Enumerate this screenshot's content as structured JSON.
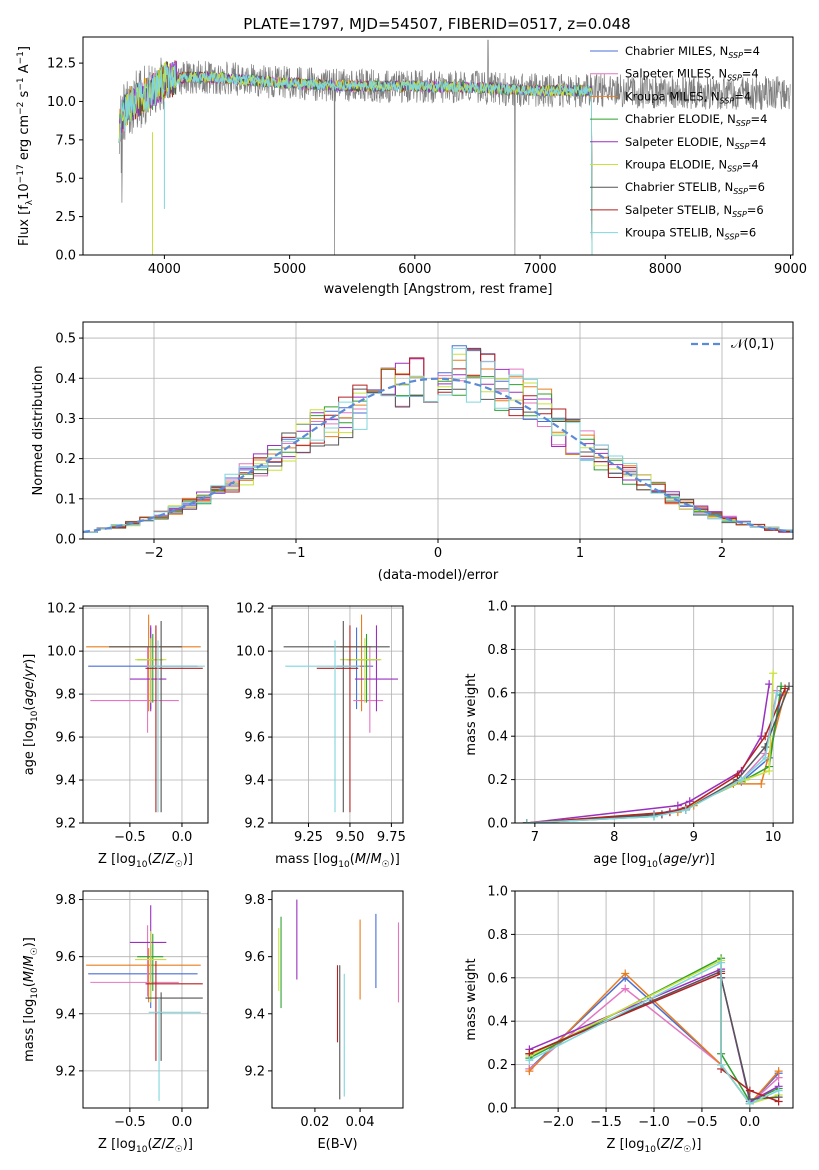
{
  "figure_title": "PLATE=1797, MJD=54507, FIBERID=0517, z=0.048",
  "models": [
    {
      "name": "Chabrier MILES",
      "nssp": "4",
      "color": "#4a6fd6"
    },
    {
      "name": "Salpeter MILES",
      "nssp": "4",
      "color": "#e377c2"
    },
    {
      "name": "Kroupa MILES",
      "nssp": "4",
      "color": "#e87d1e"
    },
    {
      "name": "Chabrier ELODIE",
      "nssp": "4",
      "color": "#2ca02c"
    },
    {
      "name": "Salpeter ELODIE",
      "nssp": "4",
      "color": "#9b30c0"
    },
    {
      "name": "Kroupa ELODIE",
      "nssp": "4",
      "color": "#c8e23b"
    },
    {
      "name": "Chabrier STELIB",
      "nssp": "6",
      "color": "#555555"
    },
    {
      "name": "Salpeter STELIB",
      "nssp": "6",
      "color": "#b22222"
    },
    {
      "name": "Kroupa STELIB",
      "nssp": "6",
      "color": "#7fd6dd"
    }
  ],
  "chart_data": [
    {
      "id": "spectrum",
      "type": "line",
      "xlabel": "wavelength [Angstrom, rest frame]",
      "ylabel_main": "Flux [f",
      "ylabel_sub": "λ",
      "ylabel_mid": "10",
      "ylabel_sup1": "−17",
      "ylabel_tail": " erg cm",
      "ylabel_sup2": "−2",
      "ylabel_s": " s",
      "ylabel_sup3": "−1",
      "ylabel_A": " A",
      "ylabel_sup4": "−1",
      "ylabel_end": "]",
      "xlim": [
        3350,
        9020
      ],
      "ylim": [
        0,
        14.2
      ],
      "xticks": [
        4000,
        5000,
        6000,
        7000,
        8000,
        9000
      ],
      "yticks": [
        0.0,
        2.5,
        5.0,
        7.5,
        10.0,
        12.5
      ],
      "yticklabels": [
        "0.0",
        "2.5",
        "5.0",
        "7.5",
        "10.0",
        "12.5"
      ],
      "data_range": [
        3640,
        9000
      ],
      "continuum": [
        [
          3640,
          8.5
        ],
        [
          3700,
          9.6
        ],
        [
          3800,
          10.2
        ],
        [
          3900,
          10.6
        ],
        [
          4000,
          11.4
        ],
        [
          4200,
          11.6
        ],
        [
          4500,
          11.5
        ],
        [
          4800,
          11.3
        ],
        [
          5000,
          11.2
        ],
        [
          5200,
          11.1
        ],
        [
          5500,
          11.0
        ],
        [
          6000,
          11.0
        ],
        [
          6500,
          10.9
        ],
        [
          7000,
          10.7
        ],
        [
          7500,
          10.7
        ],
        [
          8000,
          10.6
        ],
        [
          8500,
          10.5
        ],
        [
          9000,
          10.6
        ]
      ],
      "data_noise": 1.1,
      "model_range": [
        3640,
        7420
      ],
      "legend_position": "upper-right"
    },
    {
      "id": "residuals",
      "type": "step",
      "xlabel": "(data-model)/error",
      "ylabel": "Normed distribution",
      "xlim": [
        -2.5,
        2.5
      ],
      "ylim": [
        0,
        0.54
      ],
      "xticks": [
        -2,
        -1,
        0,
        1,
        2
      ],
      "xticklabels": [
        "−2",
        "−1",
        "0",
        "1",
        "2"
      ],
      "yticks": [
        0.0,
        0.1,
        0.2,
        0.3,
        0.4,
        0.5
      ],
      "yticklabels": [
        "0.0",
        "0.1",
        "0.2",
        "0.3",
        "0.4",
        "0.5"
      ],
      "bin_width": 0.1,
      "gaussian_label": "𝒩(0,1)",
      "gaussian_color": "#5b8ad6",
      "grid": true,
      "legend_position": "upper-right"
    },
    {
      "id": "age_vs_Z",
      "type": "errorbar",
      "xlabel": "Z [log10(Z/Z☉)]",
      "ylabel": "age  [log10(age/yr)]",
      "xlim": [
        -0.95,
        0.25
      ],
      "ylim": [
        9.2,
        10.21
      ],
      "xticks": [
        -0.5,
        0.0
      ],
      "xticklabels": [
        "−0.5",
        "0.0"
      ],
      "yticks": [
        9.2,
        9.4,
        9.6,
        9.8,
        10.0,
        10.2
      ],
      "yticklabels": [
        "9.2",
        "9.4",
        "9.6",
        "9.8",
        "10.0",
        "10.2"
      ],
      "grid": true,
      "points": [
        {
          "x": -0.3,
          "xerr": [
            0.6,
            0.45
          ],
          "y": 9.93,
          "yerr": [
            0.2,
            0.18
          ]
        },
        {
          "x": -0.33,
          "xerr": [
            0.55,
            0.3
          ],
          "y": 9.77,
          "yerr": [
            0.15,
            0.25
          ]
        },
        {
          "x": -0.32,
          "xerr": [
            0.6,
            0.5
          ],
          "y": 10.02,
          "yerr": [
            0.3,
            0.15
          ]
        },
        {
          "x": -0.28,
          "xerr": [
            0.15,
            0.1
          ],
          "y": 9.96,
          "yerr": [
            0.2,
            0.12
          ]
        },
        {
          "x": -0.3,
          "xerr": [
            0.2,
            0.15
          ],
          "y": 9.87,
          "yerr": [
            0.15,
            0.25
          ]
        },
        {
          "x": -0.3,
          "xerr": [
            0.15,
            0.15
          ],
          "y": 9.96,
          "yerr": [
            0.2,
            0.1
          ]
        },
        {
          "x": -0.2,
          "xerr": [
            0.5,
            0.2
          ],
          "y": 10.02,
          "yerr": [
            0.77,
            0.12
          ]
        },
        {
          "x": -0.25,
          "xerr": [
            0.1,
            0.45
          ],
          "y": 9.92,
          "yerr": [
            0.67,
            0.2
          ]
        },
        {
          "x": -0.23,
          "xerr": [
            0.1,
            0.45
          ],
          "y": 9.93,
          "yerr": [
            0.68,
            0.12
          ]
        }
      ]
    },
    {
      "id": "age_vs_mass",
      "type": "errorbar",
      "xlabel": "mass [log10(M/M☉)]",
      "ylabel": "",
      "xlim": [
        9.03,
        9.82
      ],
      "ylim": [
        9.2,
        10.21
      ],
      "xticks": [
        9.25,
        9.5,
        9.75
      ],
      "xticklabels": [
        "9.25",
        "9.50",
        "9.75"
      ],
      "yticks": [
        9.2,
        9.4,
        9.6,
        9.8,
        10.0,
        10.2
      ],
      "yticklabels": [
        "9.2",
        "9.4",
        "9.6",
        "9.8",
        "10.0",
        "10.2"
      ],
      "grid": true,
      "points": [
        {
          "x": 9.54,
          "xerr": [
            0.12,
            0.1
          ],
          "y": 9.93,
          "yerr": [
            0.2,
            0.18
          ]
        },
        {
          "x": 9.62,
          "xerr": [
            0.1,
            0.08
          ],
          "y": 9.77,
          "yerr": [
            0.15,
            0.25
          ]
        },
        {
          "x": 9.57,
          "xerr": [
            0.13,
            0.06
          ],
          "y": 10.02,
          "yerr": [
            0.3,
            0.15
          ]
        },
        {
          "x": 9.6,
          "xerr": [
            0.12,
            0.08
          ],
          "y": 9.96,
          "yerr": [
            0.2,
            0.12
          ]
        },
        {
          "x": 9.66,
          "xerr": [
            0.13,
            0.13
          ],
          "y": 9.87,
          "yerr": [
            0.15,
            0.25
          ]
        },
        {
          "x": 9.59,
          "xerr": [
            0.15,
            0.1
          ],
          "y": 9.96,
          "yerr": [
            0.2,
            0.1
          ]
        },
        {
          "x": 9.46,
          "xerr": [
            0.36,
            0.28
          ],
          "y": 10.02,
          "yerr": [
            0.77,
            0.12
          ]
        },
        {
          "x": 9.5,
          "xerr": [
            0.2,
            0.05
          ],
          "y": 9.92,
          "yerr": [
            0.67,
            0.2
          ]
        },
        {
          "x": 9.41,
          "xerr": [
            0.3,
            0.15
          ],
          "y": 9.93,
          "yerr": [
            0.68,
            0.12
          ]
        }
      ]
    },
    {
      "id": "massweight_vs_age",
      "type": "line",
      "xlabel": "age  [log10(age/yr)]",
      "ylabel": "mass weight",
      "xlim": [
        6.75,
        10.25
      ],
      "ylim": [
        0,
        1.0
      ],
      "xticks": [
        7,
        8,
        9,
        10
      ],
      "xticklabels": [
        "7",
        "8",
        "9",
        "10"
      ],
      "yticks": [
        0.0,
        0.2,
        0.4,
        0.6,
        0.8,
        1.0
      ],
      "yticklabels": [
        "0.0",
        "0.2",
        "0.4",
        "0.6",
        "0.8",
        "1.0"
      ],
      "grid": true,
      "series": [
        {
          "x": [
            6.9,
            8.5,
            8.9,
            9.6,
            9.95,
            10.1
          ],
          "y": [
            0.0,
            0.04,
            0.07,
            0.19,
            0.3,
            0.59
          ]
        },
        {
          "x": [
            6.9,
            8.6,
            8.95,
            9.6,
            9.9,
            10.05
          ],
          "y": [
            0.0,
            0.04,
            0.08,
            0.2,
            0.32,
            0.61
          ]
        },
        {
          "x": [
            6.9,
            8.8,
            9.0,
            9.5,
            9.85,
            10.15
          ],
          "y": [
            0.0,
            0.05,
            0.08,
            0.18,
            0.18,
            0.6
          ]
        },
        {
          "x": [
            6.9,
            8.5,
            8.9,
            9.65,
            9.95,
            10.1
          ],
          "y": [
            0.0,
            0.03,
            0.07,
            0.2,
            0.26,
            0.63
          ]
        },
        {
          "x": [
            6.9,
            8.8,
            8.95,
            9.6,
            9.85,
            9.95
          ],
          "y": [
            0.0,
            0.08,
            0.1,
            0.24,
            0.4,
            0.64
          ]
        },
        {
          "x": [
            6.9,
            8.7,
            8.9,
            9.65,
            9.95,
            10.0
          ],
          "y": [
            0.0,
            0.05,
            0.07,
            0.2,
            0.24,
            0.69
          ]
        },
        {
          "x": [
            6.9,
            8.6,
            8.9,
            9.55,
            9.9,
            10.2
          ],
          "y": [
            0.0,
            0.04,
            0.06,
            0.2,
            0.35,
            0.63
          ]
        },
        {
          "x": [
            6.9,
            8.7,
            8.9,
            9.55,
            9.9,
            10.15
          ],
          "y": [
            0.0,
            0.05,
            0.07,
            0.22,
            0.4,
            0.62
          ]
        },
        {
          "x": [
            6.9,
            8.5,
            8.9,
            9.6,
            9.9,
            10.05
          ],
          "y": [
            0.0,
            0.03,
            0.06,
            0.2,
            0.3,
            0.6
          ]
        }
      ]
    },
    {
      "id": "mass_vs_Z",
      "type": "errorbar",
      "xlabel": "Z [log10(Z/Z☉)]",
      "ylabel": "mass [log10(M/M☉)]",
      "xlim": [
        -0.95,
        0.25
      ],
      "ylim": [
        9.07,
        9.83
      ],
      "xticks": [
        -0.5,
        0.0
      ],
      "xticklabels": [
        "−0.5",
        "0.0"
      ],
      "yticks": [
        9.2,
        9.4,
        9.6,
        9.8
      ],
      "yticklabels": [
        "9.2",
        "9.4",
        "9.6",
        "9.8"
      ],
      "grid": true,
      "points": [
        {
          "x": -0.3,
          "xerr": [
            0.6,
            0.45
          ],
          "y": 9.54,
          "yerr": [
            0.12,
            0.1
          ]
        },
        {
          "x": -0.33,
          "xerr": [
            0.55,
            0.3
          ],
          "y": 9.51,
          "yerr": [
            0.05,
            0.2
          ]
        },
        {
          "x": -0.32,
          "xerr": [
            0.6,
            0.5
          ],
          "y": 9.57,
          "yerr": [
            0.13,
            0.06
          ]
        },
        {
          "x": -0.28,
          "xerr": [
            0.15,
            0.1
          ],
          "y": 9.6,
          "yerr": [
            0.12,
            0.08
          ]
        },
        {
          "x": -0.3,
          "xerr": [
            0.2,
            0.15
          ],
          "y": 9.65,
          "yerr": [
            0.13,
            0.13
          ]
        },
        {
          "x": -0.3,
          "xerr": [
            0.15,
            0.15
          ],
          "y": 9.59,
          "yerr": [
            0.15,
            0.1
          ]
        },
        {
          "x": -0.2,
          "xerr": [
            0.15,
            0.4
          ],
          "y": 9.455,
          "yerr": [
            0.22,
            0.02
          ]
        },
        {
          "x": -0.25,
          "xerr": [
            0.1,
            0.45
          ],
          "y": 9.505,
          "yerr": [
            0.27,
            0.08
          ]
        },
        {
          "x": -0.22,
          "xerr": [
            0.1,
            0.4
          ],
          "y": 9.405,
          "yerr": [
            0.31,
            0.05
          ]
        }
      ]
    },
    {
      "id": "mass_vs_EBV",
      "type": "errorbar",
      "xlabel": "E(B-V)",
      "ylabel": "",
      "xlim": [
        0.001,
        0.059
      ],
      "ylim": [
        9.07,
        9.83
      ],
      "xticks": [
        0.02,
        0.04
      ],
      "xticklabels": [
        "0.02",
        "0.04"
      ],
      "yticks": [
        9.2,
        9.4,
        9.6,
        9.8
      ],
      "yticklabels": [
        "9.2",
        "9.4",
        "9.6",
        "9.8"
      ],
      "grid": false,
      "points": [
        {
          "x": 0.047,
          "xerr": [
            0,
            0
          ],
          "y": 9.62,
          "yerr": [
            0.13,
            0.13
          ]
        },
        {
          "x": 0.057,
          "xerr": [
            0,
            0
          ],
          "y": 9.58,
          "yerr": [
            0.14,
            0.14
          ]
        },
        {
          "x": 0.04,
          "xerr": [
            0,
            0
          ],
          "y": 9.6,
          "yerr": [
            0.15,
            0.13
          ]
        },
        {
          "x": 0.005,
          "xerr": [
            0,
            0
          ],
          "y": 9.58,
          "yerr": [
            0.16,
            0.16
          ]
        },
        {
          "x": 0.012,
          "xerr": [
            0,
            0
          ],
          "y": 9.66,
          "yerr": [
            0.14,
            0.14
          ]
        },
        {
          "x": 0.004,
          "xerr": [
            0,
            0
          ],
          "y": 9.6,
          "yerr": [
            0.12,
            0.1
          ]
        },
        {
          "x": 0.031,
          "xerr": [
            0,
            0
          ],
          "y": 9.33,
          "yerr": [
            0.23,
            0.24
          ]
        },
        {
          "x": 0.03,
          "xerr": [
            0,
            0
          ],
          "y": 9.4,
          "yerr": [
            0.1,
            0.17
          ]
        },
        {
          "x": 0.033,
          "xerr": [
            0,
            0
          ],
          "y": 9.33,
          "yerr": [
            0.22,
            0.21
          ]
        }
      ]
    },
    {
      "id": "massweight_vs_Z",
      "type": "line",
      "xlabel": "Z [log10(Z/Z☉)]",
      "ylabel": "mass weight",
      "xlim": [
        -2.45,
        0.45
      ],
      "ylim": [
        0,
        1.0
      ],
      "xticks": [
        -2.0,
        -1.5,
        -1.0,
        -0.5,
        0.0
      ],
      "xticklabels": [
        "−2.0",
        "−1.5",
        "−1.0",
        "−0.5",
        "0.0"
      ],
      "yticks": [
        0.0,
        0.2,
        0.4,
        0.6,
        0.8,
        1.0
      ],
      "yticklabels": [
        "0.0",
        "0.2",
        "0.4",
        "0.6",
        "0.8",
        "1.0"
      ],
      "grid": true,
      "series": [
        {
          "x": [
            -2.3,
            -1.3,
            -0.3,
            0.0,
            0.3
          ],
          "y": [
            0.18,
            0.6,
            0.2,
            0.02,
            0.16
          ]
        },
        {
          "x": [
            -2.3,
            -1.3,
            -0.3,
            0.0,
            0.3
          ],
          "y": [
            0.18,
            0.55,
            0.2,
            0.02,
            0.14
          ]
        },
        {
          "x": [
            -2.3,
            -1.3,
            -0.3,
            0.0,
            0.3
          ],
          "y": [
            0.17,
            0.62,
            0.2,
            0.02,
            0.17
          ]
        },
        {
          "x": [
            -2.3,
            -0.3,
            -0.3,
            0.0,
            0.3
          ],
          "y": [
            0.23,
            0.69,
            0.25,
            0.03,
            0.09
          ]
        },
        {
          "x": [
            -2.3,
            -0.3,
            -0.3,
            0.0,
            0.3
          ],
          "y": [
            0.27,
            0.64,
            0.6,
            0.03,
            0.1
          ]
        },
        {
          "x": [
            -2.3,
            -0.3,
            -0.3,
            0.0,
            0.3
          ],
          "y": [
            0.24,
            0.68,
            0.2,
            0.02,
            0.06
          ]
        },
        {
          "x": [
            -2.3,
            -0.3,
            -0.3,
            0.0,
            0.3
          ],
          "y": [
            0.25,
            0.63,
            0.6,
            0.04,
            0.05
          ]
        },
        {
          "x": [
            -2.3,
            -0.3,
            -0.3,
            0.0,
            0.3
          ],
          "y": [
            0.25,
            0.62,
            0.18,
            0.08,
            0.03
          ]
        },
        {
          "x": [
            -2.3,
            -0.3,
            -0.3,
            0.0,
            0.3
          ],
          "y": [
            0.22,
            0.67,
            0.2,
            0.02,
            0.08
          ]
        }
      ]
    }
  ]
}
